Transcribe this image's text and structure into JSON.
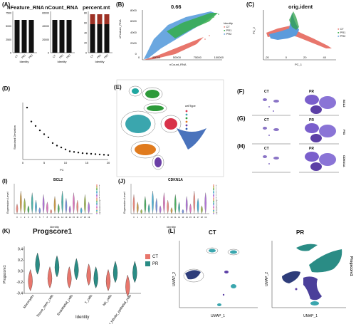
{
  "panels": {
    "A": {
      "label": "(A)",
      "plots": [
        {
          "title": "nFeature_RNA",
          "yticks": [
            "7500",
            "5000",
            "2500",
            "0"
          ],
          "xticks": [
            "CT",
            "PR1",
            "PR2"
          ]
        },
        {
          "title": "nCount_RNA",
          "yticks": [
            "60000",
            "40000",
            "20000",
            "0"
          ],
          "xticks": [
            "CT",
            "PR1",
            "PR2"
          ]
        },
        {
          "title": "percent.mt",
          "yticks": [
            "80",
            "60",
            "40",
            "20",
            "0"
          ],
          "xticks": [
            "CT",
            "PR1",
            "PR2"
          ]
        }
      ],
      "xlabel": "Identity"
    },
    "B": {
      "label": "(B)",
      "title": "0.66",
      "xlabel": "nCount_RNA",
      "ylabel": "nFeature_RNA",
      "xticks": [
        "0",
        "25000",
        "50000",
        "75000",
        "100000"
      ],
      "yticks": [
        "8000",
        "6000",
        "4000",
        "2000",
        "0"
      ],
      "legend_title": "Identity",
      "legend": [
        "CT",
        "PR1",
        "PR2"
      ]
    },
    "C": {
      "label": "(C)",
      "title": "orig.ident",
      "xlabel": "PC_1",
      "ylabel": "PC_2",
      "xticks": [
        "-20",
        "0",
        "20",
        "40"
      ],
      "yticks": [
        "20",
        "10",
        "0",
        "-10",
        "-20"
      ],
      "legend": [
        "CT",
        "PR1",
        "PR2"
      ]
    },
    "D": {
      "label": "(D)",
      "xlabel": "PC",
      "ylabel": "Standard Deviation",
      "xticks": [
        "0",
        "5",
        "10",
        "15",
        "20"
      ]
    },
    "E": {
      "label": "(E)",
      "legend_title": "cellType"
    },
    "F": {
      "label": "(F)",
      "left": "CT",
      "right": "PR",
      "side": "BCL2"
    },
    "G": {
      "label": "(G)",
      "left": "CT",
      "right": "PR",
      "side": "P53"
    },
    "H": {
      "label": "(H)",
      "left": "CT",
      "right": "PR",
      "side": "CDKN1A"
    },
    "I": {
      "label": "(I)",
      "title": "BCL2",
      "ylabel": "Expression Level",
      "xlabel": "Identity"
    },
    "J": {
      "label": "(J)",
      "title": "CDKN1A",
      "ylabel": "Expression Level",
      "xlabel": "Identity"
    },
    "K": {
      "label": "(K)",
      "title": "Progscore1",
      "ylabel": "Progscore1",
      "xlabel": "Identity",
      "yticks": [
        "0.4",
        "0.2",
        "0.0",
        "-0.2",
        "-0.4"
      ],
      "legend": [
        "CT",
        "PR"
      ]
    },
    "L": {
      "label": "(L)",
      "left_title": "CT",
      "right_title": "PR",
      "xlabel": "UMAP_1",
      "ylabel": "UMAP_2",
      "side": "Progscore1",
      "xticks": [
        "-10",
        "0",
        "10"
      ],
      "yticks": [
        "10",
        "5",
        "0",
        "-5",
        "-10"
      ]
    }
  },
  "chart_data": [
    {
      "type": "line",
      "title": "",
      "xlabel": "PC",
      "ylabel": "Standard Deviation",
      "x": [
        1,
        2,
        3,
        4,
        5,
        6,
        7,
        8,
        9,
        10,
        11,
        12,
        13,
        14,
        15,
        16,
        17,
        18,
        19,
        20
      ],
      "values": [
        9.2,
        7.0,
        6.3,
        5.6,
        5.0,
        4.5,
        3.6,
        3.2,
        2.9,
        2.6,
        2.3,
        2.2,
        2.1,
        2.0,
        1.95,
        1.9,
        1.85,
        1.8,
        1.75,
        1.7
      ],
      "ylim": [
        1,
        10
      ]
    },
    {
      "type": "bar",
      "title": "Progscore1",
      "xlabel": "Identity",
      "ylabel": "Progscore1",
      "categories": [
        "Monocytes",
        "Tissue_stem_cells",
        "Endothelial_cells",
        "T_cells",
        "NK_cells",
        "renal_tubular_epithelial_cells"
      ],
      "series": [
        {
          "name": "CT",
          "values": [
            -0.2,
            -0.15,
            -0.15,
            -0.1,
            -0.2,
            -0.3
          ]
        },
        {
          "name": "PR",
          "values": [
            0.1,
            0.05,
            0.0,
            -0.15,
            -0.05,
            -0.05
          ]
        }
      ],
      "ylim": [
        -0.4,
        0.45
      ]
    }
  ],
  "colors": {
    "ct": "#e8766c",
    "pr": "#2a8c85",
    "pr1": "#26a63a",
    "pr2": "#5b9bdc",
    "purple": "#5c3fa6",
    "teal": "#3aa6ae",
    "green": "#2d9a3a",
    "orange": "#e07b1e",
    "red": "#d8324a",
    "navy": "#2e3d7a",
    "blue": "#3a67c6"
  }
}
